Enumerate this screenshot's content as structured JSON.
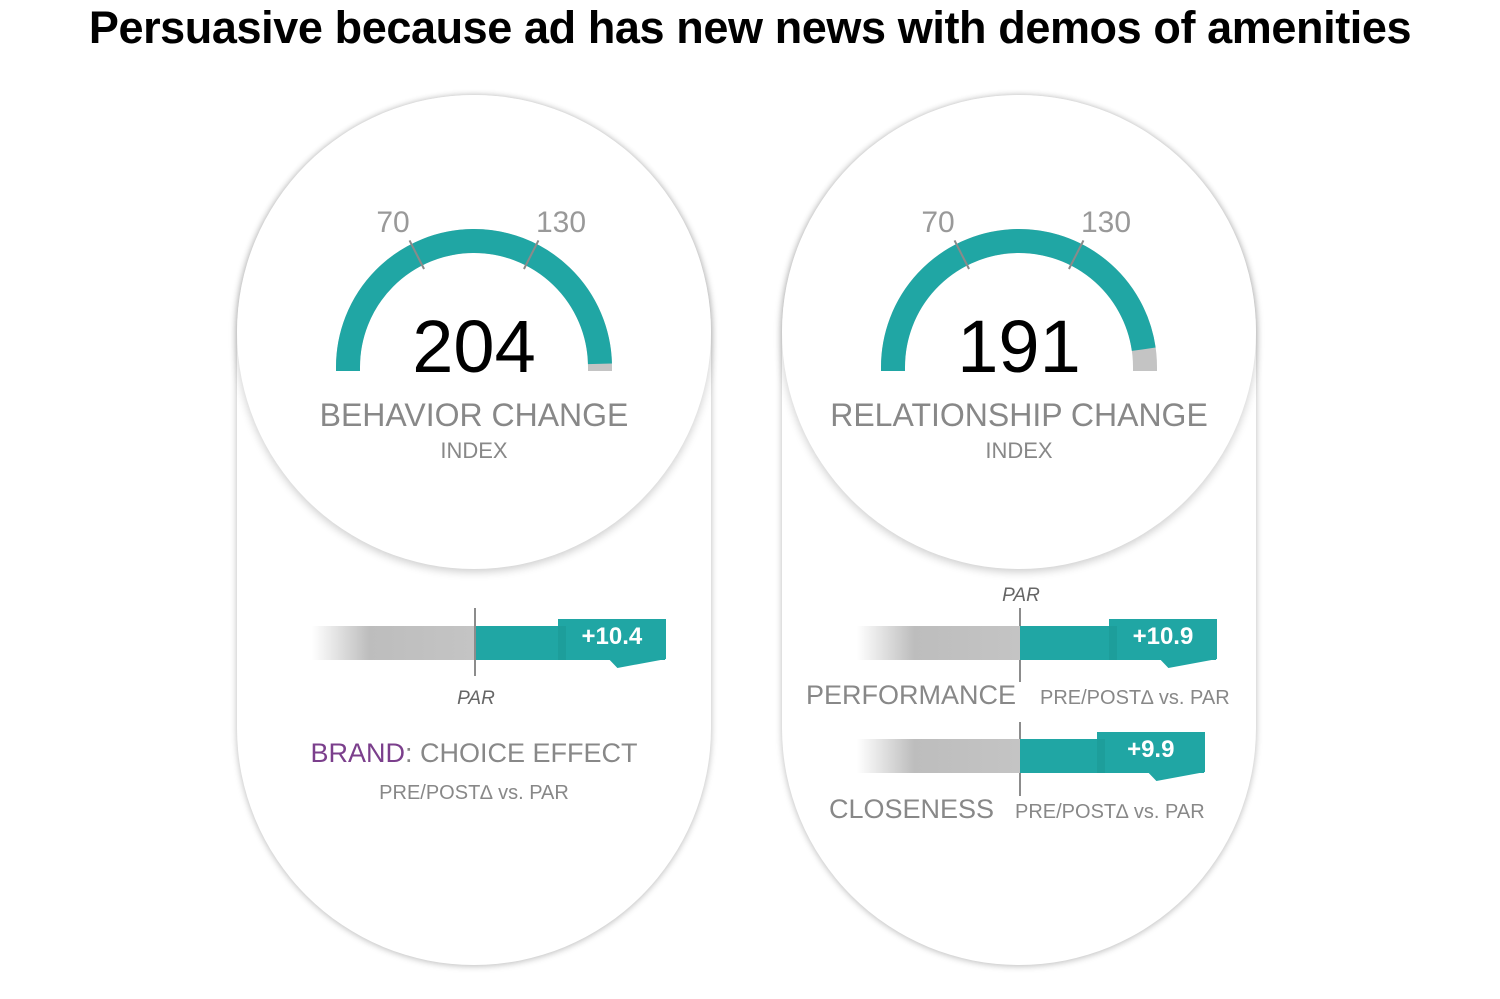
{
  "title": "Persuasive because ad has new news with demos of amenities",
  "colors": {
    "accent": "#20a6a4",
    "brand": "#7b3f8c",
    "track": "#c4c4c4",
    "text_gray": "#888888"
  },
  "chart_data": [
    {
      "type": "gauge",
      "value": 204,
      "value_label": "204",
      "label": "BEHAVIOR CHANGE",
      "sublabel": "INDEX",
      "thresholds": [
        "70",
        "130"
      ]
    },
    {
      "type": "bar",
      "par_label": "PAR",
      "metric_prefix": "BRAND",
      "metric_suffix": ": CHOICE EFFECT",
      "sublabel": "PRE/POST∆ vs. PAR",
      "values": [
        10.4
      ],
      "value_labels": [
        "+10.4"
      ]
    },
    {
      "type": "gauge",
      "value": 191,
      "value_label": "191",
      "label": "RELATIONSHIP CHANGE",
      "sublabel": "INDEX",
      "thresholds": [
        "70",
        "130"
      ]
    },
    {
      "type": "bar",
      "par_label": "PAR",
      "categories": [
        "PERFORMANCE",
        "CLOSENESS"
      ],
      "values": [
        10.9,
        9.9
      ],
      "value_labels": [
        "+10.9",
        "+9.9"
      ],
      "sublabel": "PRE/POST∆ vs. PAR"
    }
  ]
}
